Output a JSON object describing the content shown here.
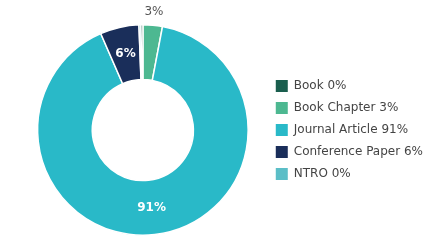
{
  "chart_data": {
    "type": "doughnut",
    "values": [
      3,
      91,
      6,
      0.3,
      0.3
    ],
    "colors": [
      "#4db891",
      "#29b9c8",
      "#1a2e5a",
      "#5bbec7",
      "#1a5e4e"
    ],
    "data_labels": true,
    "value_labels": [
      "3%",
      "91%",
      "6%",
      null,
      null
    ],
    "legend": "right",
    "legend_entries": [
      {
        "name": "Book 0%",
        "color": "#1a5e4e"
      },
      {
        "name": "Book Chapter 3%",
        "color": "#4db891"
      },
      {
        "name": "Journal Article 91%",
        "color": "#29b9c8"
      },
      {
        "name": "Conference Paper 6%",
        "color": "#1a2e5a"
      },
      {
        "name": "NTRO 0%",
        "color": "#5bbec7"
      }
    ]
  }
}
